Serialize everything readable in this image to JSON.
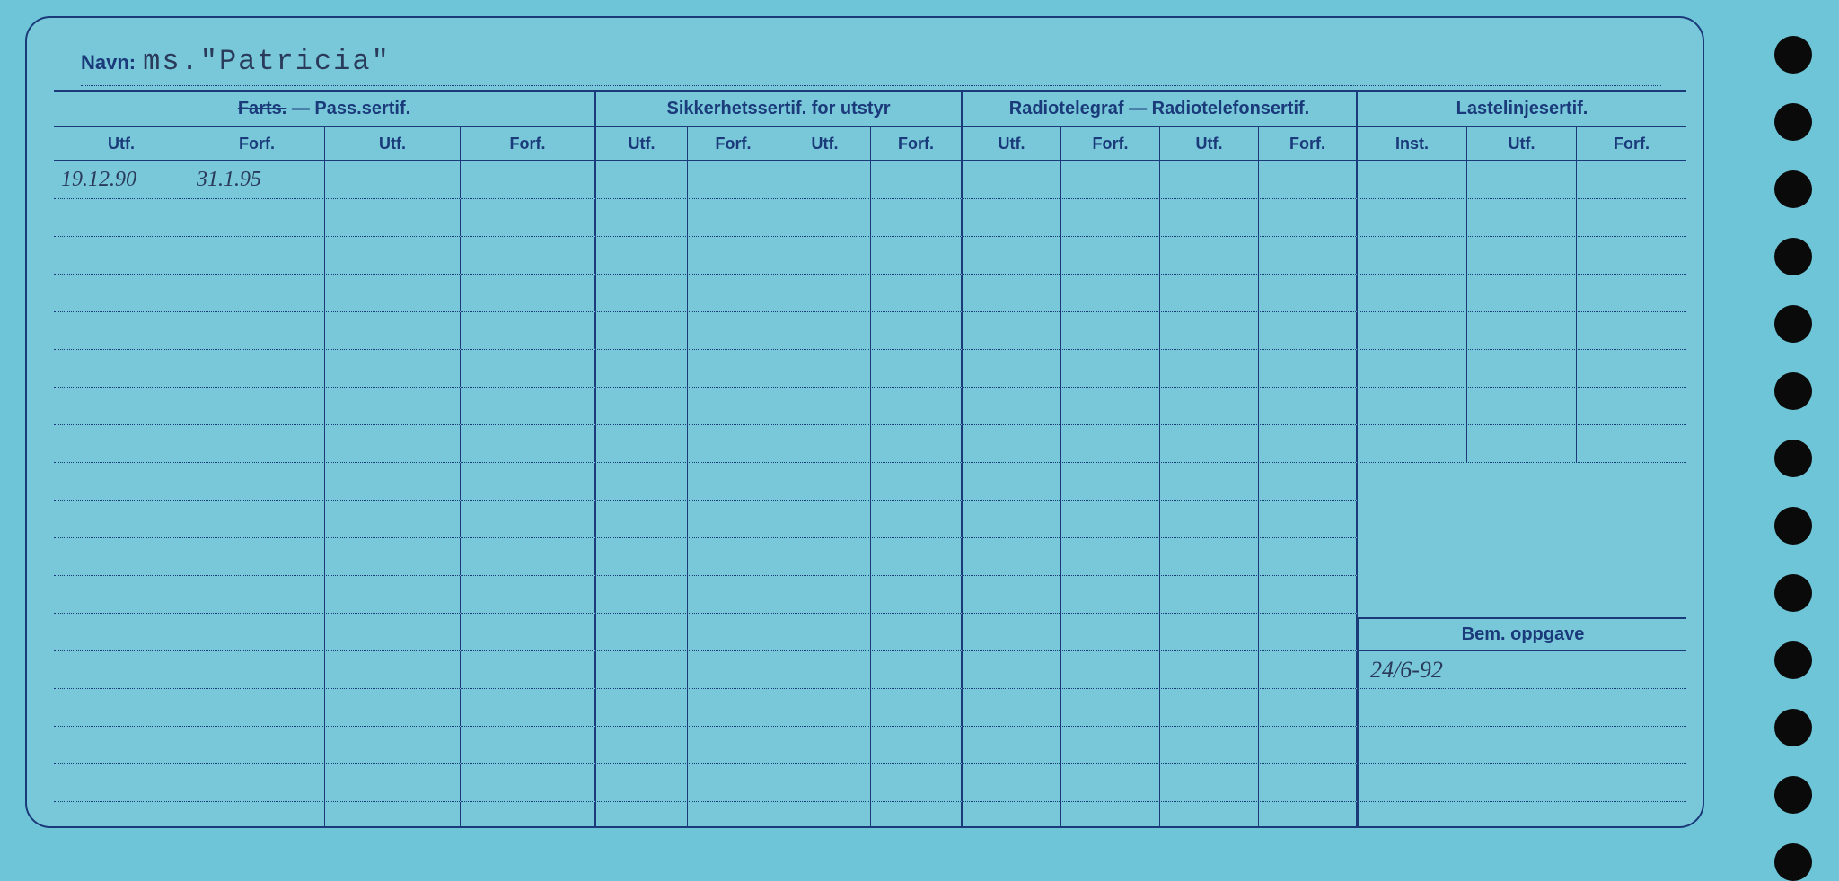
{
  "colors": {
    "page_bg": "#6ec5d8",
    "card_bg": "#78c8da",
    "line": "#1a3a7a",
    "text_printed": "#1a3a7a",
    "text_handwritten": "#2a3a5a",
    "hole": "#0a0a0a"
  },
  "name": {
    "label": "Navn:",
    "value": "ms.\"Patricia\""
  },
  "groups": [
    {
      "label_struck": "Farts.",
      "label_rest": " — Pass.sertif.",
      "cols": [
        "Utf.",
        "Forf.",
        "Utf.",
        "Forf."
      ]
    },
    {
      "label": "Sikkerhetssertif. for utstyr",
      "cols": [
        "Utf.",
        "Forf.",
        "Utf.",
        "Forf."
      ]
    },
    {
      "label": "Radiotelegraf — Radiotelefonsertif.",
      "cols": [
        "Utf.",
        "Forf.",
        "Utf.",
        "Forf."
      ]
    },
    {
      "label": "Lastelinjesertif.",
      "cols": [
        "Inst.",
        "Utf.",
        "Forf."
      ]
    }
  ],
  "main_rows_count": 8,
  "rows": [
    {
      "c1": "19.12.90",
      "c2": "31.1.95",
      "c3": "",
      "c4": "",
      "c5": "",
      "c6": "",
      "c7": "",
      "c8": "",
      "c9": "",
      "c10": "",
      "c11": "",
      "c12": "",
      "c13": "",
      "c14": "",
      "c15": ""
    },
    {
      "c1": "",
      "c2": "",
      "c3": "",
      "c4": "",
      "c5": "",
      "c6": "",
      "c7": "",
      "c8": "",
      "c9": "",
      "c10": "",
      "c11": "",
      "c12": "",
      "c13": "",
      "c14": "",
      "c15": ""
    },
    {
      "c1": "",
      "c2": "",
      "c3": "",
      "c4": "",
      "c5": "",
      "c6": "",
      "c7": "",
      "c8": "",
      "c9": "",
      "c10": "",
      "c11": "",
      "c12": "",
      "c13": "",
      "c14": "",
      "c15": ""
    },
    {
      "c1": "",
      "c2": "",
      "c3": "",
      "c4": "",
      "c5": "",
      "c6": "",
      "c7": "",
      "c8": "",
      "c9": "",
      "c10": "",
      "c11": "",
      "c12": "",
      "c13": "",
      "c14": "",
      "c15": ""
    },
    {
      "c1": "",
      "c2": "",
      "c3": "",
      "c4": "",
      "c5": "",
      "c6": "",
      "c7": "",
      "c8": "",
      "c9": "",
      "c10": "",
      "c11": "",
      "c12": "",
      "c13": "",
      "c14": "",
      "c15": ""
    },
    {
      "c1": "",
      "c2": "",
      "c3": "",
      "c4": "",
      "c5": "",
      "c6": "",
      "c7": "",
      "c8": "",
      "c9": "",
      "c10": "",
      "c11": "",
      "c12": "",
      "c13": "",
      "c14": "",
      "c15": ""
    },
    {
      "c1": "",
      "c2": "",
      "c3": "",
      "c4": "",
      "c5": "",
      "c6": "",
      "c7": "",
      "c8": "",
      "c9": "",
      "c10": "",
      "c11": "",
      "c12": "",
      "c13": "",
      "c14": "",
      "c15": ""
    },
    {
      "c1": "",
      "c2": "",
      "c3": "",
      "c4": "",
      "c5": "",
      "c6": "",
      "c7": "",
      "c8": "",
      "c9": "",
      "c10": "",
      "c11": "",
      "c12": "",
      "c13": "",
      "c14": "",
      "c15": ""
    }
  ],
  "left_tail_rows": 10,
  "bem": {
    "header": "Bem. oppgave",
    "rows": [
      "24/6-92",
      "",
      "",
      "",
      ""
    ]
  },
  "holes_count": 13
}
